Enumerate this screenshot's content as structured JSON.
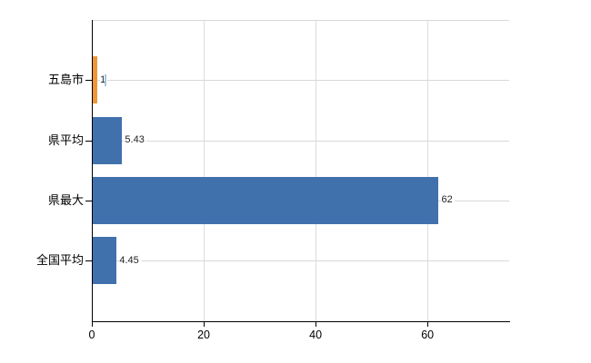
{
  "chart_data": {
    "type": "bar",
    "orientation": "horizontal",
    "title": "",
    "xlabel": "",
    "ylabel": "",
    "categories": [
      "五島市",
      "県平均",
      "県最大",
      "全国平均"
    ],
    "values": [
      1,
      5.43,
      62,
      4.45
    ],
    "value_labels": [
      "1",
      "5.43",
      "62",
      "4.45"
    ],
    "bar_colors": [
      "#ee9638",
      "#4171ad",
      "#4171ad",
      "#4171ad"
    ],
    "x_ticks": [
      0,
      20,
      40,
      60
    ],
    "xlim": [
      0,
      74.6
    ],
    "grid": true,
    "legend": "none"
  },
  "colors": {
    "background": "#ffffff",
    "axis": "#000000",
    "gridline": "#d9d9d9",
    "value_label_text": "#222222",
    "category_label_text": "#000000",
    "orange_series": "#ee9638",
    "blue_series": "#4171ad",
    "cursor_artifact": "#a4c6da"
  }
}
